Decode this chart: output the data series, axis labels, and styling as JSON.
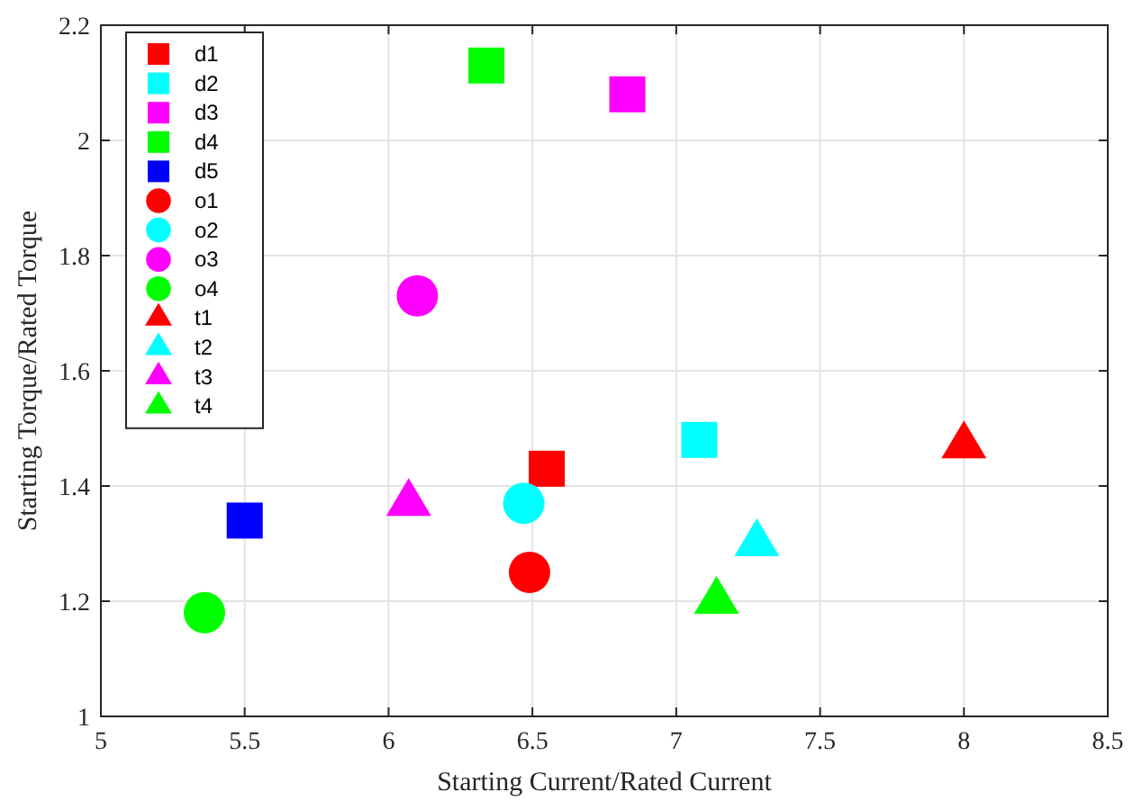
{
  "chart_data": {
    "type": "scatter",
    "xlabel": "Starting Current/Rated Current",
    "ylabel": "Starting Torque/Rated Torque",
    "xlim": [
      5,
      8.5
    ],
    "ylim": [
      1,
      2.2
    ],
    "xticks": [
      5,
      5.5,
      6,
      6.5,
      7,
      7.5,
      8,
      8.5
    ],
    "yticks": [
      1,
      1.2,
      1.4,
      1.6,
      1.8,
      2,
      2.2
    ],
    "grid": true,
    "legend": "top left",
    "series": [
      {
        "name": "d1",
        "color": "#ff0000",
        "marker": "square",
        "x": [
          6.55
        ],
        "values": [
          1.43
        ]
      },
      {
        "name": "d2",
        "color": "#00ffff",
        "marker": "square",
        "x": [
          7.08
        ],
        "values": [
          1.48
        ]
      },
      {
        "name": "d3",
        "color": "#ff00ff",
        "marker": "square",
        "x": [
          6.83
        ],
        "values": [
          2.08
        ]
      },
      {
        "name": "d4",
        "color": "#00ff00",
        "marker": "square",
        "x": [
          6.34
        ],
        "values": [
          2.13
        ]
      },
      {
        "name": "d5",
        "color": "#0000ff",
        "marker": "square",
        "x": [
          5.5
        ],
        "values": [
          1.34
        ]
      },
      {
        "name": "o1",
        "color": "#ff0000",
        "marker": "circle",
        "x": [
          6.49
        ],
        "values": [
          1.25
        ]
      },
      {
        "name": "o2",
        "color": "#00ffff",
        "marker": "circle",
        "x": [
          6.47
        ],
        "values": [
          1.37
        ]
      },
      {
        "name": "o3",
        "color": "#ff00ff",
        "marker": "circle",
        "x": [
          6.1
        ],
        "values": [
          1.73
        ]
      },
      {
        "name": "o4",
        "color": "#00ff00",
        "marker": "circle",
        "x": [
          5.36
        ],
        "values": [
          1.18
        ]
      },
      {
        "name": "t1",
        "color": "#ff0000",
        "marker": "triangle",
        "x": [
          8.0
        ],
        "values": [
          1.47
        ]
      },
      {
        "name": "t2",
        "color": "#00ffff",
        "marker": "triangle",
        "x": [
          7.28
        ],
        "values": [
          1.3
        ]
      },
      {
        "name": "t3",
        "color": "#ff00ff",
        "marker": "triangle",
        "x": [
          6.07
        ],
        "values": [
          1.37
        ]
      },
      {
        "name": "t4",
        "color": "#00ff00",
        "marker": "triangle",
        "x": [
          7.14
        ],
        "values": [
          1.2
        ]
      }
    ]
  }
}
